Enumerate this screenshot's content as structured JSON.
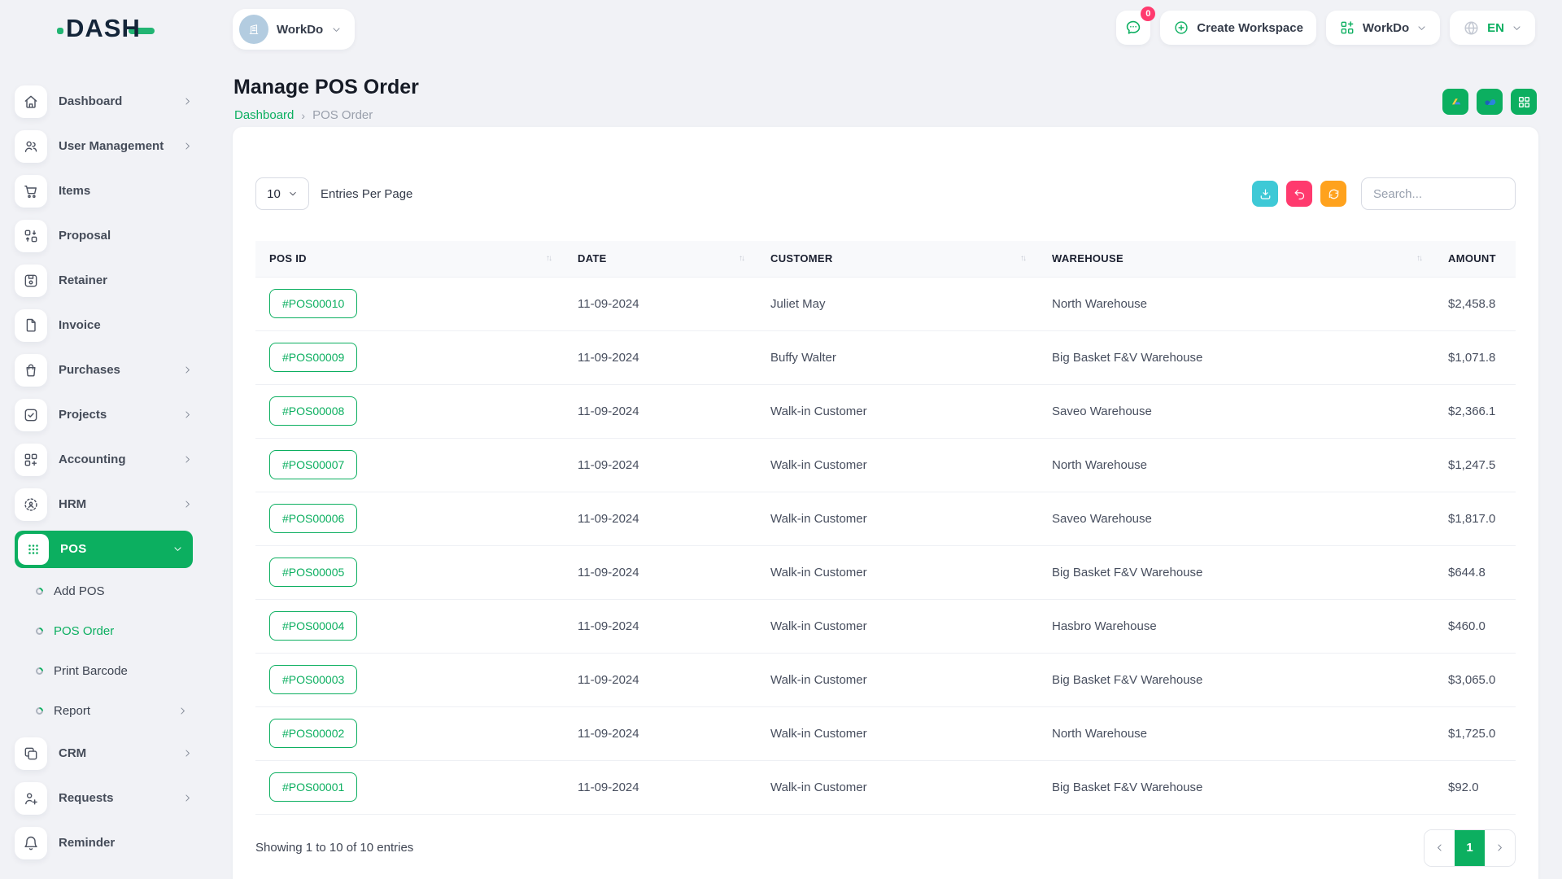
{
  "colors": {
    "primary": "#0CAF60",
    "cyan": "#3EC9D6",
    "pink": "#FF3A6E",
    "orange": "#FFA21D",
    "navy": "#142539"
  },
  "header": {
    "logo_text": "DASH",
    "workspace_selector": {
      "name": "WorkDo",
      "icon": "building-icon"
    },
    "messages": {
      "icon": "chat-icon",
      "badge": "0"
    },
    "create_workspace": {
      "icon": "plus-circle-icon",
      "label": "Create Workspace"
    },
    "workspace_menu": {
      "icon": "grid-plus-icon",
      "label": "WorkDo"
    },
    "language_menu": {
      "icon": "globe-icon",
      "label": "EN"
    }
  },
  "sidebar": {
    "items": [
      {
        "label": "Dashboard",
        "icon": "home-icon",
        "kind": "main",
        "chevron": "right",
        "active": false
      },
      {
        "label": "User Management",
        "icon": "users-icon",
        "kind": "main",
        "chevron": "right",
        "active": false
      },
      {
        "label": "Items",
        "icon": "cart-icon",
        "kind": "main",
        "chevron": "",
        "active": false
      },
      {
        "label": "Proposal",
        "icon": "proposal-icon",
        "kind": "main",
        "chevron": "",
        "active": false
      },
      {
        "label": "Retainer",
        "icon": "retainer-icon",
        "kind": "main",
        "chevron": "",
        "active": false
      },
      {
        "label": "Invoice",
        "icon": "invoice-icon",
        "kind": "main",
        "chevron": "",
        "active": false
      },
      {
        "label": "Purchases",
        "icon": "purchases-icon",
        "kind": "main",
        "chevron": "right",
        "active": false
      },
      {
        "label": "Projects",
        "icon": "projects-icon",
        "kind": "main",
        "chevron": "right",
        "active": false
      },
      {
        "label": "Accounting",
        "icon": "accounting-icon",
        "kind": "main",
        "chevron": "right",
        "active": false
      },
      {
        "label": "HRM",
        "icon": "hrm-icon",
        "kind": "main",
        "chevron": "right",
        "active": false
      },
      {
        "label": "POS",
        "icon": "pos-icon",
        "kind": "main",
        "chevron": "down",
        "active": true
      },
      {
        "label": "Add POS",
        "icon": "submenu-bullet-icon",
        "kind": "sub",
        "chevron": "",
        "active": false
      },
      {
        "label": "POS Order",
        "icon": "submenu-bullet-icon",
        "kind": "sub",
        "chevron": "",
        "active": true
      },
      {
        "label": "Print Barcode",
        "icon": "submenu-bullet-icon",
        "kind": "sub",
        "chevron": "",
        "active": false
      },
      {
        "label": "Report",
        "icon": "submenu-bullet-icon",
        "kind": "sub",
        "chevron": "right",
        "active": false
      },
      {
        "label": "CRM",
        "icon": "crm-icon",
        "kind": "main",
        "chevron": "right",
        "active": false
      },
      {
        "label": "Requests",
        "icon": "requests-icon",
        "kind": "main",
        "chevron": "right",
        "active": false
      },
      {
        "label": "Reminder",
        "icon": "reminder-icon",
        "kind": "main",
        "chevron": "",
        "active": false
      }
    ]
  },
  "page": {
    "title": "Manage POS Order",
    "breadcrumb": {
      "home": "Dashboard",
      "separator": "›",
      "current": "POS Order"
    },
    "actions": [
      {
        "name": "google-drive",
        "icon": "google-drive-icon"
      },
      {
        "name": "onedrive",
        "icon": "onedrive-icon"
      },
      {
        "name": "modules-grid",
        "icon": "grid-white-icon"
      }
    ]
  },
  "toolbar": {
    "entries_per_page": {
      "value": "10",
      "label": "Entries Per Page"
    },
    "buttons": [
      {
        "name": "export",
        "icon": "download-icon",
        "color": "#3EC9D6"
      },
      {
        "name": "reset",
        "icon": "undo-icon",
        "color": "#FF3A6E"
      },
      {
        "name": "refresh",
        "icon": "refresh-icon",
        "color": "#FFA21D"
      }
    ],
    "search": {
      "placeholder": "Search..."
    }
  },
  "table": {
    "columns": [
      {
        "label": "POS ID",
        "sortable": true
      },
      {
        "label": "DATE",
        "sortable": true
      },
      {
        "label": "CUSTOMER",
        "sortable": true
      },
      {
        "label": "WAREHOUSE",
        "sortable": true
      },
      {
        "label": "AMOUNT",
        "sortable": false
      }
    ],
    "rows": [
      {
        "pos_id": "#POS00010",
        "date": "11-09-2024",
        "customer": "Juliet May",
        "warehouse": "North Warehouse",
        "amount": "$2,458.8"
      },
      {
        "pos_id": "#POS00009",
        "date": "11-09-2024",
        "customer": "Buffy Walter",
        "warehouse": "Big Basket F&V Warehouse",
        "amount": "$1,071.8"
      },
      {
        "pos_id": "#POS00008",
        "date": "11-09-2024",
        "customer": "Walk-in Customer",
        "warehouse": "Saveo Warehouse",
        "amount": "$2,366.1"
      },
      {
        "pos_id": "#POS00007",
        "date": "11-09-2024",
        "customer": "Walk-in Customer",
        "warehouse": "North Warehouse",
        "amount": "$1,247.5"
      },
      {
        "pos_id": "#POS00006",
        "date": "11-09-2024",
        "customer": "Walk-in Customer",
        "warehouse": "Saveo Warehouse",
        "amount": "$1,817.0"
      },
      {
        "pos_id": "#POS00005",
        "date": "11-09-2024",
        "customer": "Walk-in Customer",
        "warehouse": "Big Basket F&V Warehouse",
        "amount": "$644.8"
      },
      {
        "pos_id": "#POS00004",
        "date": "11-09-2024",
        "customer": "Walk-in Customer",
        "warehouse": "Hasbro Warehouse",
        "amount": "$460.0"
      },
      {
        "pos_id": "#POS00003",
        "date": "11-09-2024",
        "customer": "Walk-in Customer",
        "warehouse": "Big Basket F&V Warehouse",
        "amount": "$3,065.0"
      },
      {
        "pos_id": "#POS00002",
        "date": "11-09-2024",
        "customer": "Walk-in Customer",
        "warehouse": "North Warehouse",
        "amount": "$1,725.0"
      },
      {
        "pos_id": "#POS00001",
        "date": "11-09-2024",
        "customer": "Walk-in Customer",
        "warehouse": "Big Basket F&V Warehouse",
        "amount": "$92.0"
      }
    ]
  },
  "footer": {
    "showing_text": "Showing 1 to 10 of 10 entries",
    "pagination": {
      "prev": "‹",
      "active_page": "1",
      "next": "›"
    }
  }
}
